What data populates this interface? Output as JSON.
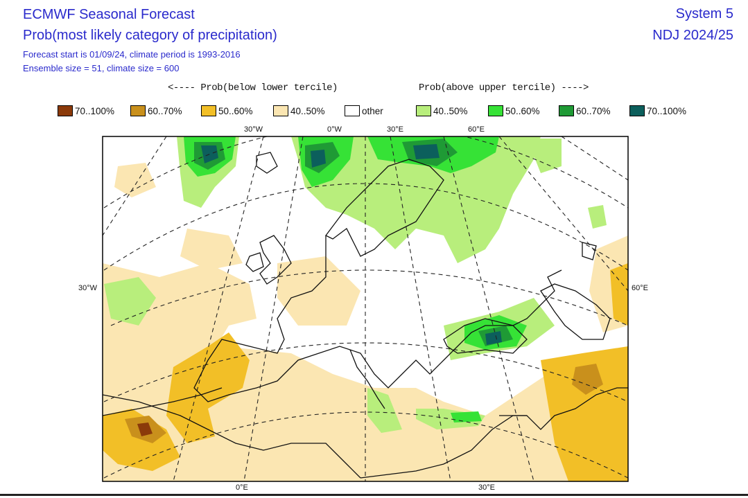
{
  "header": {
    "title": "ECMWF Seasonal Forecast",
    "subtitle": "Prob(most likely category of precipitation)",
    "line3": "Forecast start is 01/09/24, climate period is 1993-2016",
    "line4": "Ensemble size = 51, climate size = 600",
    "system": "System 5",
    "period": "NDJ 2024/25"
  },
  "legend": {
    "below_title": "<---- Prob(below lower tercile)",
    "above_title": "Prob(above upper tercile) ---->",
    "items": [
      {
        "label": "70..100%",
        "color": "#8b3a0a"
      },
      {
        "label": "60..70%",
        "color": "#c9901c"
      },
      {
        "label": "50..60%",
        "color": "#f2bf27"
      },
      {
        "label": "40..50%",
        "color": "#fbe6b2"
      },
      {
        "label": "other",
        "color": "#ffffff"
      },
      {
        "label": "40..50%",
        "color": "#b8ee7c"
      },
      {
        "label": "50..60%",
        "color": "#36e236"
      },
      {
        "label": "60..70%",
        "color": "#1f9a35"
      },
      {
        "label": "70..100%",
        "color": "#0c5f5c"
      }
    ]
  },
  "map": {
    "lon_top": [
      "30°W",
      "0°W",
      "30°E",
      "60°E"
    ],
    "lon_bottom": [
      "0°E",
      "30°E"
    ],
    "lat_left": "30°W",
    "lat_right": "60°E"
  }
}
